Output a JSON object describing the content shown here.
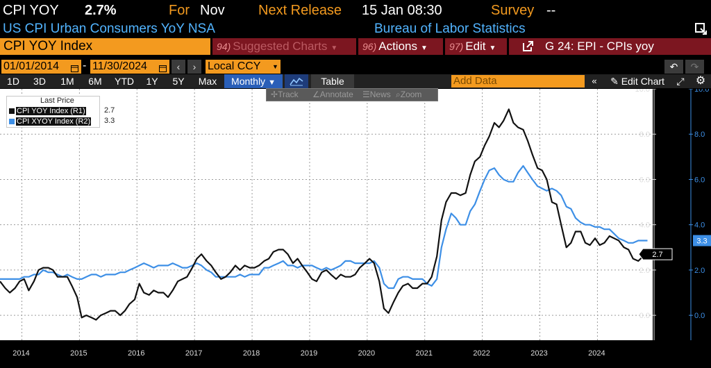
{
  "header": {
    "ticker": "CPI YOY",
    "last_value": "2.7%",
    "for_label": "For",
    "for_period": "Nov",
    "next_label": "Next Release",
    "next_value": "15 Jan 08:30",
    "survey_label": "Survey",
    "survey_value": "--",
    "description": "US CPI Urban Consumers YoY NSA",
    "source": "Bureau of Labor Statistics"
  },
  "command_bar": {
    "security": "CPI YOY Index",
    "suggested_num": "94)",
    "suggested_label": "Suggested Charts",
    "actions_num": "96)",
    "actions_label": "Actions",
    "edit_num": "97)",
    "edit_label": "Edit",
    "function_label": "G 24: EPI - CPIs yoy"
  },
  "range": {
    "start": "01/01/2014",
    "end": "11/30/2024",
    "currency": "Local CCY"
  },
  "toolbar": {
    "periods": [
      "1D",
      "3D",
      "1M",
      "6M",
      "YTD",
      "1Y",
      "5Y",
      "Max"
    ],
    "frequency": "Monthly",
    "table_label": "Table",
    "add_data_placeholder": "Add Data",
    "edit_chart_label": "Edit Chart"
  },
  "float_tools": {
    "track": "Track",
    "annotate": "Annotate",
    "news": "News",
    "zoom": "Zoom"
  },
  "legend": {
    "title": "Last Price",
    "items": [
      {
        "label": "CPI YOY Index  (R1)",
        "value": "2.7",
        "color": "#111111"
      },
      {
        "label": "CPI XYOY Index  (R2)",
        "value": "3.3",
        "color": "#3d8fe6"
      }
    ]
  },
  "chart_data": {
    "type": "line",
    "x_unit": "year",
    "xlim": [
      2013.62,
      2024.96
    ],
    "ylim": [
      -1.1,
      10.0
    ],
    "yticks_r1": [
      "10.0",
      "8.0",
      "6.0",
      "4.0",
      "2.0",
      "0.0"
    ],
    "yticks_r2": [
      "10.0",
      "8.0",
      "6.0",
      "4.0",
      "2.0",
      "0.0"
    ],
    "x_ticks": [
      2014,
      2015,
      2016,
      2017,
      2018,
      2019,
      2020,
      2021,
      2022,
      2023,
      2024
    ],
    "grid": true,
    "last_labels": {
      "r1": "2.7",
      "r2": "3.3"
    },
    "series": [
      {
        "name": "CPI YOY Index (R1)",
        "color": "#111111",
        "points": [
          [
            2013.62,
            1.5
          ],
          [
            2013.71,
            1.2
          ],
          [
            2013.79,
            1.0
          ],
          [
            2013.88,
            1.2
          ],
          [
            2013.96,
            1.5
          ],
          [
            2014.04,
            1.6
          ],
          [
            2014.12,
            1.1
          ],
          [
            2014.21,
            1.5
          ],
          [
            2014.29,
            2.0
          ],
          [
            2014.37,
            2.1
          ],
          [
            2014.46,
            2.1
          ],
          [
            2014.54,
            2.0
          ],
          [
            2014.62,
            1.7
          ],
          [
            2014.71,
            1.7
          ],
          [
            2014.79,
            1.7
          ],
          [
            2014.87,
            1.3
          ],
          [
            2014.96,
            0.8
          ],
          [
            2015.04,
            -0.1
          ],
          [
            2015.12,
            0.0
          ],
          [
            2015.21,
            -0.1
          ],
          [
            2015.29,
            -0.2
          ],
          [
            2015.37,
            0.0
          ],
          [
            2015.46,
            0.1
          ],
          [
            2015.54,
            0.2
          ],
          [
            2015.62,
            0.2
          ],
          [
            2015.71,
            0.0
          ],
          [
            2015.79,
            0.2
          ],
          [
            2015.87,
            0.5
          ],
          [
            2015.96,
            0.7
          ],
          [
            2016.04,
            1.4
          ],
          [
            2016.12,
            1.0
          ],
          [
            2016.21,
            0.9
          ],
          [
            2016.29,
            1.1
          ],
          [
            2016.37,
            1.0
          ],
          [
            2016.46,
            1.0
          ],
          [
            2016.54,
            0.8
          ],
          [
            2016.62,
            1.1
          ],
          [
            2016.71,
            1.5
          ],
          [
            2016.79,
            1.6
          ],
          [
            2016.87,
            1.7
          ],
          [
            2016.96,
            2.1
          ],
          [
            2017.04,
            2.5
          ],
          [
            2017.12,
            2.7
          ],
          [
            2017.21,
            2.4
          ],
          [
            2017.29,
            2.2
          ],
          [
            2017.37,
            1.9
          ],
          [
            2017.46,
            1.6
          ],
          [
            2017.54,
            1.7
          ],
          [
            2017.62,
            1.9
          ],
          [
            2017.71,
            2.2
          ],
          [
            2017.79,
            2.0
          ],
          [
            2017.87,
            2.2
          ],
          [
            2017.96,
            2.1
          ],
          [
            2018.04,
            2.1
          ],
          [
            2018.12,
            2.2
          ],
          [
            2018.21,
            2.4
          ],
          [
            2018.29,
            2.5
          ],
          [
            2018.37,
            2.8
          ],
          [
            2018.46,
            2.9
          ],
          [
            2018.54,
            2.9
          ],
          [
            2018.62,
            2.7
          ],
          [
            2018.71,
            2.3
          ],
          [
            2018.79,
            2.5
          ],
          [
            2018.87,
            2.2
          ],
          [
            2018.96,
            1.9
          ],
          [
            2019.04,
            1.6
          ],
          [
            2019.12,
            1.5
          ],
          [
            2019.21,
            1.9
          ],
          [
            2019.29,
            2.0
          ],
          [
            2019.37,
            1.8
          ],
          [
            2019.46,
            1.6
          ],
          [
            2019.54,
            1.8
          ],
          [
            2019.62,
            1.7
          ],
          [
            2019.71,
            1.7
          ],
          [
            2019.79,
            1.8
          ],
          [
            2019.87,
            2.1
          ],
          [
            2019.96,
            2.3
          ],
          [
            2020.04,
            2.5
          ],
          [
            2020.12,
            2.3
          ],
          [
            2020.21,
            1.5
          ],
          [
            2020.29,
            0.3
          ],
          [
            2020.37,
            0.1
          ],
          [
            2020.46,
            0.6
          ],
          [
            2020.54,
            1.0
          ],
          [
            2020.62,
            1.3
          ],
          [
            2020.71,
            1.4
          ],
          [
            2020.79,
            1.2
          ],
          [
            2020.87,
            1.2
          ],
          [
            2020.96,
            1.4
          ],
          [
            2021.04,
            1.4
          ],
          [
            2021.12,
            1.7
          ],
          [
            2021.21,
            2.6
          ],
          [
            2021.29,
            4.2
          ],
          [
            2021.37,
            5.0
          ],
          [
            2021.46,
            5.4
          ],
          [
            2021.54,
            5.4
          ],
          [
            2021.62,
            5.3
          ],
          [
            2021.71,
            5.4
          ],
          [
            2021.79,
            6.2
          ],
          [
            2021.87,
            6.8
          ],
          [
            2021.96,
            7.0
          ],
          [
            2022.04,
            7.5
          ],
          [
            2022.12,
            7.9
          ],
          [
            2022.21,
            8.5
          ],
          [
            2022.29,
            8.3
          ],
          [
            2022.37,
            8.6
          ],
          [
            2022.46,
            9.1
          ],
          [
            2022.54,
            8.5
          ],
          [
            2022.62,
            8.3
          ],
          [
            2022.71,
            8.2
          ],
          [
            2022.79,
            7.7
          ],
          [
            2022.87,
            7.1
          ],
          [
            2022.96,
            6.5
          ],
          [
            2023.04,
            6.4
          ],
          [
            2023.12,
            6.0
          ],
          [
            2023.21,
            5.0
          ],
          [
            2023.29,
            4.9
          ],
          [
            2023.37,
            4.0
          ],
          [
            2023.46,
            3.0
          ],
          [
            2023.54,
            3.2
          ],
          [
            2023.62,
            3.7
          ],
          [
            2023.71,
            3.7
          ],
          [
            2023.79,
            3.2
          ],
          [
            2023.87,
            3.1
          ],
          [
            2023.96,
            3.4
          ],
          [
            2024.04,
            3.1
          ],
          [
            2024.12,
            3.2
          ],
          [
            2024.21,
            3.5
          ],
          [
            2024.29,
            3.4
          ],
          [
            2024.37,
            3.3
          ],
          [
            2024.46,
            3.0
          ],
          [
            2024.54,
            2.9
          ],
          [
            2024.62,
            2.5
          ],
          [
            2024.71,
            2.4
          ],
          [
            2024.79,
            2.6
          ],
          [
            2024.87,
            2.7
          ]
        ]
      },
      {
        "name": "CPI XYOY Index (R2)",
        "color": "#3d8fe6",
        "points": [
          [
            2013.62,
            1.6
          ],
          [
            2013.71,
            1.6
          ],
          [
            2013.79,
            1.6
          ],
          [
            2013.88,
            1.6
          ],
          [
            2013.96,
            1.6
          ],
          [
            2014.04,
            1.7
          ],
          [
            2014.12,
            1.7
          ],
          [
            2014.21,
            1.8
          ],
          [
            2014.29,
            1.8
          ],
          [
            2014.37,
            2.0
          ],
          [
            2014.46,
            1.9
          ],
          [
            2014.54,
            1.9
          ],
          [
            2014.62,
            1.8
          ],
          [
            2014.71,
            1.7
          ],
          [
            2014.79,
            1.8
          ],
          [
            2014.87,
            1.7
          ],
          [
            2014.96,
            1.6
          ],
          [
            2015.04,
            1.6
          ],
          [
            2015.12,
            1.7
          ],
          [
            2015.21,
            1.8
          ],
          [
            2015.29,
            1.8
          ],
          [
            2015.37,
            1.7
          ],
          [
            2015.46,
            1.8
          ],
          [
            2015.54,
            1.8
          ],
          [
            2015.62,
            1.8
          ],
          [
            2015.71,
            1.9
          ],
          [
            2015.79,
            1.9
          ],
          [
            2015.87,
            2.0
          ],
          [
            2015.96,
            2.1
          ],
          [
            2016.04,
            2.2
          ],
          [
            2016.12,
            2.3
          ],
          [
            2016.21,
            2.2
          ],
          [
            2016.29,
            2.1
          ],
          [
            2016.37,
            2.2
          ],
          [
            2016.46,
            2.2
          ],
          [
            2016.54,
            2.2
          ],
          [
            2016.62,
            2.3
          ],
          [
            2016.71,
            2.2
          ],
          [
            2016.79,
            2.1
          ],
          [
            2016.87,
            2.1
          ],
          [
            2016.96,
            2.2
          ],
          [
            2017.04,
            2.3
          ],
          [
            2017.12,
            2.2
          ],
          [
            2017.21,
            2.0
          ],
          [
            2017.29,
            1.9
          ],
          [
            2017.37,
            1.7
          ],
          [
            2017.46,
            1.7
          ],
          [
            2017.54,
            1.7
          ],
          [
            2017.62,
            1.7
          ],
          [
            2017.71,
            1.7
          ],
          [
            2017.79,
            1.8
          ],
          [
            2017.87,
            1.7
          ],
          [
            2017.96,
            1.8
          ],
          [
            2018.04,
            1.8
          ],
          [
            2018.12,
            1.8
          ],
          [
            2018.21,
            2.1
          ],
          [
            2018.29,
            2.1
          ],
          [
            2018.37,
            2.2
          ],
          [
            2018.46,
            2.3
          ],
          [
            2018.54,
            2.4
          ],
          [
            2018.62,
            2.2
          ],
          [
            2018.71,
            2.2
          ],
          [
            2018.79,
            2.1
          ],
          [
            2018.87,
            2.2
          ],
          [
            2018.96,
            2.2
          ],
          [
            2019.04,
            2.2
          ],
          [
            2019.12,
            2.1
          ],
          [
            2019.21,
            2.0
          ],
          [
            2019.29,
            2.1
          ],
          [
            2019.37,
            2.0
          ],
          [
            2019.46,
            2.1
          ],
          [
            2019.54,
            2.2
          ],
          [
            2019.62,
            2.4
          ],
          [
            2019.71,
            2.4
          ],
          [
            2019.79,
            2.3
          ],
          [
            2019.87,
            2.3
          ],
          [
            2019.96,
            2.3
          ],
          [
            2020.04,
            2.3
          ],
          [
            2020.12,
            2.4
          ],
          [
            2020.21,
            2.1
          ],
          [
            2020.29,
            1.4
          ],
          [
            2020.37,
            1.2
          ],
          [
            2020.46,
            1.2
          ],
          [
            2020.54,
            1.6
          ],
          [
            2020.62,
            1.7
          ],
          [
            2020.71,
            1.7
          ],
          [
            2020.79,
            1.6
          ],
          [
            2020.87,
            1.6
          ],
          [
            2020.96,
            1.6
          ],
          [
            2021.04,
            1.4
          ],
          [
            2021.12,
            1.3
          ],
          [
            2021.21,
            1.6
          ],
          [
            2021.29,
            3.0
          ],
          [
            2021.37,
            3.8
          ],
          [
            2021.46,
            4.5
          ],
          [
            2021.54,
            4.3
          ],
          [
            2021.62,
            4.0
          ],
          [
            2021.71,
            4.0
          ],
          [
            2021.79,
            4.6
          ],
          [
            2021.87,
            4.9
          ],
          [
            2021.96,
            5.5
          ],
          [
            2022.04,
            6.0
          ],
          [
            2022.12,
            6.4
          ],
          [
            2022.21,
            6.5
          ],
          [
            2022.29,
            6.2
          ],
          [
            2022.37,
            6.0
          ],
          [
            2022.46,
            5.9
          ],
          [
            2022.54,
            5.9
          ],
          [
            2022.62,
            6.3
          ],
          [
            2022.71,
            6.6
          ],
          [
            2022.79,
            6.3
          ],
          [
            2022.87,
            6.0
          ],
          [
            2022.96,
            5.7
          ],
          [
            2023.04,
            5.6
          ],
          [
            2023.12,
            5.5
          ],
          [
            2023.21,
            5.6
          ],
          [
            2023.29,
            5.5
          ],
          [
            2023.37,
            5.3
          ],
          [
            2023.46,
            4.8
          ],
          [
            2023.54,
            4.7
          ],
          [
            2023.62,
            4.3
          ],
          [
            2023.71,
            4.1
          ],
          [
            2023.79,
            4.0
          ],
          [
            2023.87,
            4.0
          ],
          [
            2023.96,
            3.9
          ],
          [
            2024.04,
            3.9
          ],
          [
            2024.12,
            3.8
          ],
          [
            2024.21,
            3.8
          ],
          [
            2024.29,
            3.6
          ],
          [
            2024.37,
            3.4
          ],
          [
            2024.46,
            3.3
          ],
          [
            2024.54,
            3.2
          ],
          [
            2024.62,
            3.2
          ],
          [
            2024.71,
            3.3
          ],
          [
            2024.79,
            3.3
          ],
          [
            2024.87,
            3.3
          ]
        ]
      }
    ]
  }
}
